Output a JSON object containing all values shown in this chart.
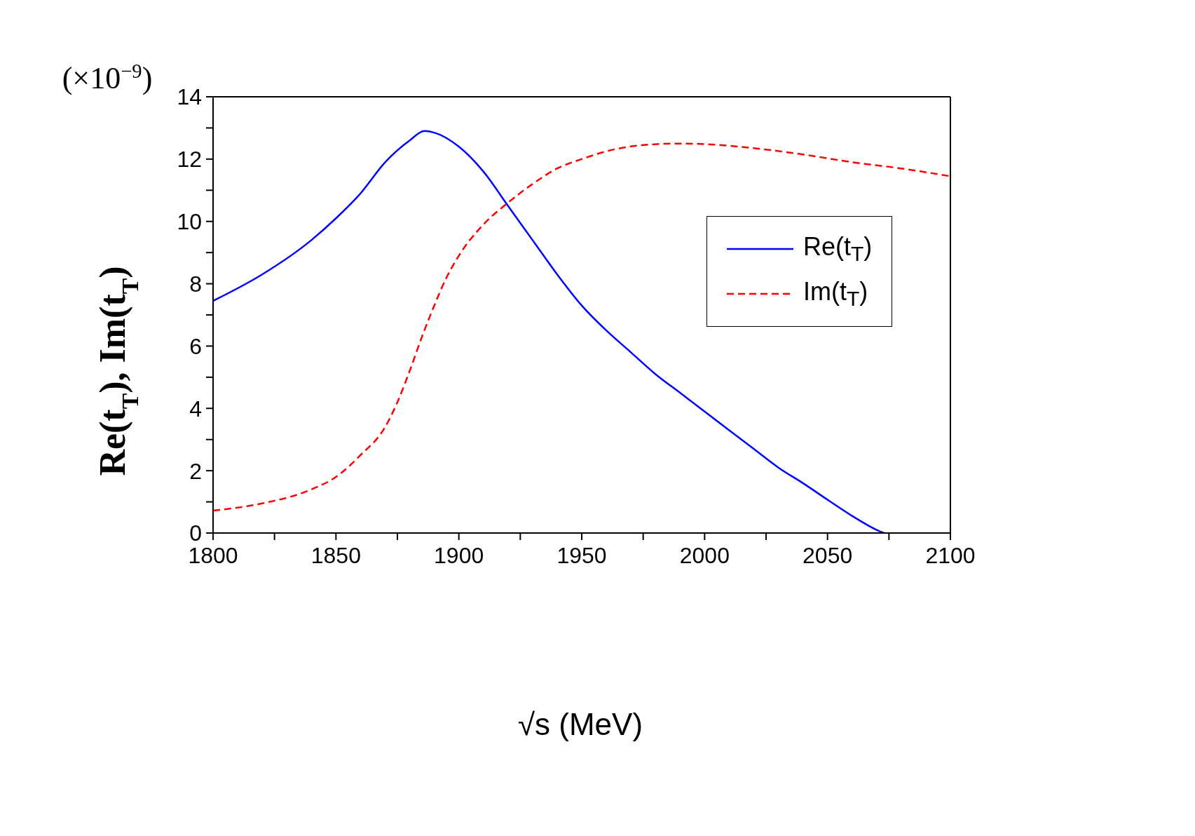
{
  "chart_data": {
    "type": "line",
    "xlabel": "√s   (MeV)",
    "ylabel": "Re(t$_{T}$),  Im(t$_{T}$)",
    "annotations": [
      "(×10$^{−9}$)"
    ],
    "xlim": [
      1800,
      2100
    ],
    "ylim": [
      0,
      14
    ],
    "xticks": [
      1800,
      {
        "value": 1825,
        "label": null
      },
      1850,
      {
        "value": 1875,
        "label": null
      },
      1900,
      {
        "value": 1925,
        "label": null
      },
      1950,
      {
        "value": 1975,
        "label": null
      },
      2000,
      {
        "value": 2025,
        "label": null
      },
      2050,
      {
        "value": 2075,
        "label": null
      },
      2100
    ],
    "yticks": [
      0,
      {
        "value": 1,
        "label": null
      },
      2,
      {
        "value": 3,
        "label": null
      },
      4,
      {
        "value": 5,
        "label": null
      },
      6,
      {
        "value": 7,
        "label": null
      },
      8,
      {
        "value": 9,
        "label": null
      },
      10,
      {
        "value": 11,
        "label": null
      },
      12,
      {
        "value": 13,
        "label": null
      },
      14
    ],
    "legend": "top right",
    "series": [
      {
        "name": "Re(t$_{T}$)",
        "color": "#0000ff",
        "line_style": "solid",
        "x": [
          1800,
          1820,
          1840,
          1850,
          1860,
          1870,
          1880,
          1886,
          1890,
          1900,
          1910,
          1920,
          1930,
          1940,
          1950,
          1960,
          1970,
          1980,
          1990,
          2000,
          2010,
          2020,
          2030,
          2040,
          2050,
          2060,
          2070,
          2073
        ],
        "values": [
          7.45,
          8.3,
          9.4,
          10.1,
          10.9,
          11.9,
          12.6,
          12.9,
          12.85,
          12.4,
          11.6,
          10.5,
          9.4,
          8.3,
          7.3,
          6.5,
          5.8,
          5.1,
          4.5,
          3.9,
          3.3,
          2.7,
          2.1,
          1.6,
          1.07,
          0.55,
          0.1,
          0
        ]
      },
      {
        "name": "Im(t$_{T}$)",
        "color": "#ff0000",
        "line_style": "dashed",
        "x": [
          1800,
          1820,
          1840,
          1850,
          1860,
          1870,
          1875,
          1880,
          1885,
          1890,
          1895,
          1900,
          1910,
          1920,
          1930,
          1940,
          1950,
          1960,
          1975,
          1990,
          2000,
          2020,
          2040,
          2060,
          2080,
          2100
        ],
        "values": [
          0.72,
          0.95,
          1.4,
          1.8,
          2.5,
          3.4,
          4.2,
          5.2,
          6.3,
          7.3,
          8.2,
          8.9,
          9.9,
          10.6,
          11.2,
          11.7,
          12.0,
          12.25,
          12.45,
          12.5,
          12.48,
          12.35,
          12.15,
          11.9,
          11.7,
          11.45
        ]
      }
    ]
  }
}
